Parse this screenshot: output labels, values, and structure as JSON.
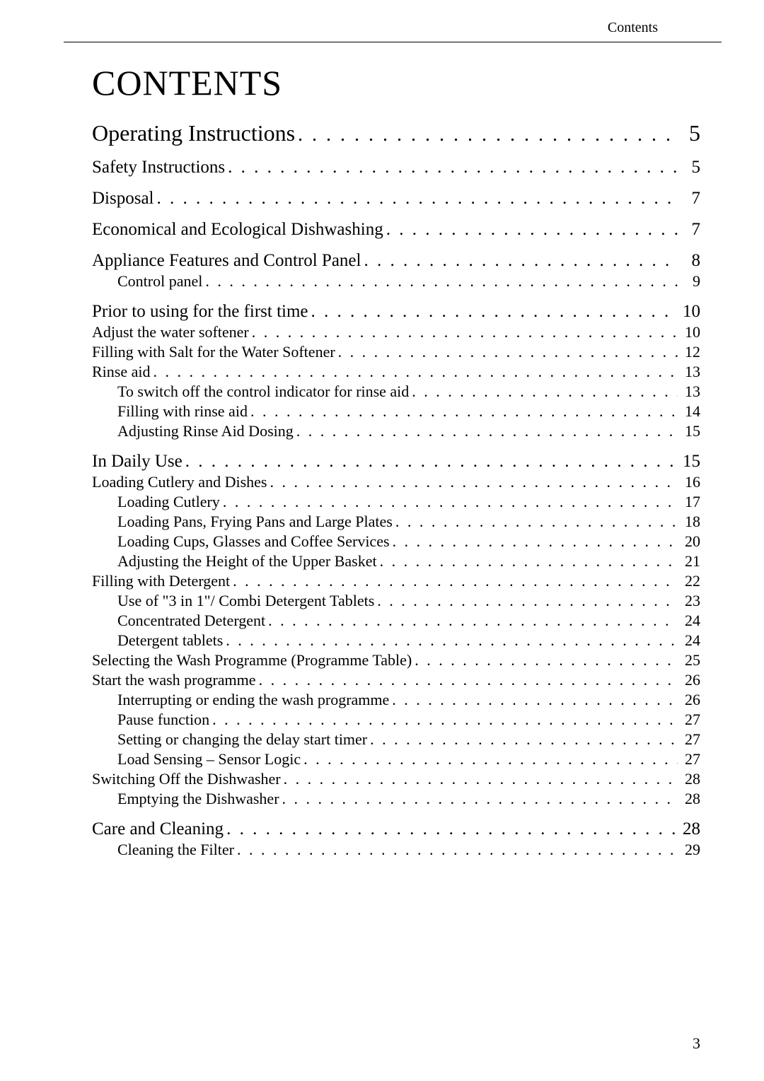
{
  "header_label": "Contents",
  "main_title": "CONTENTS",
  "page_number": "3",
  "toc": [
    {
      "level": 0,
      "text": "Operating Instructions",
      "page": "5"
    },
    {
      "level": 1,
      "text": "Safety Instructions",
      "page": "5"
    },
    {
      "level": 1,
      "text": "Disposal",
      "page": "7"
    },
    {
      "level": 1,
      "text": "Economical and Ecological Dishwashing",
      "page": "7"
    },
    {
      "level": 1,
      "text": "Appliance Features and Control Panel",
      "page": "8"
    },
    {
      "level": 3,
      "text": "Control panel",
      "page": "9"
    },
    {
      "level": 1,
      "text": "Prior to using for the first time",
      "page": "10"
    },
    {
      "level": 2,
      "text": "Adjust the water softener",
      "page": "10"
    },
    {
      "level": 2,
      "text": "Filling with Salt for the Water Softener",
      "page": "12"
    },
    {
      "level": 2,
      "text": "Rinse aid",
      "page": "13"
    },
    {
      "level": 3,
      "text": "To switch off the control indicator for rinse aid",
      "page": "13"
    },
    {
      "level": 3,
      "text": "Filling with rinse aid",
      "page": "14"
    },
    {
      "level": 3,
      "text": "Adjusting Rinse Aid Dosing",
      "page": "15"
    },
    {
      "level": 1,
      "text": "In Daily Use",
      "page": "15"
    },
    {
      "level": 2,
      "text": "Loading Cutlery and Dishes",
      "page": "16"
    },
    {
      "level": 3,
      "text": "Loading Cutlery",
      "page": "17"
    },
    {
      "level": 3,
      "text": "Loading Pans, Frying Pans and Large Plates",
      "page": "18"
    },
    {
      "level": 3,
      "text": "Loading Cups, Glasses and Coffee Services",
      "page": "20"
    },
    {
      "level": 3,
      "text": "Adjusting the Height of the Upper Basket",
      "page": "21"
    },
    {
      "level": 2,
      "text": "Filling with Detergent",
      "page": "22"
    },
    {
      "level": 3,
      "text": "Use of \"3 in 1\"/ Combi Detergent Tablets",
      "page": "23"
    },
    {
      "level": 3,
      "text": "Concentrated Detergent",
      "page": "24"
    },
    {
      "level": 3,
      "text": "Detergent tablets",
      "page": "24"
    },
    {
      "level": 2,
      "text": "Selecting the Wash Programme (Programme Table)",
      "page": "25"
    },
    {
      "level": 2,
      "text": "Start the wash programme",
      "page": "26"
    },
    {
      "level": 3,
      "text": "Interrupting or ending the wash programme",
      "page": "26"
    },
    {
      "level": 3,
      "text": "Pause function",
      "page": "27"
    },
    {
      "level": 3,
      "text": "Setting or changing the delay start timer",
      "page": "27"
    },
    {
      "level": 3,
      "text": "Load Sensing – Sensor Logic",
      "page": "27"
    },
    {
      "level": 2,
      "text": "Switching Off the Dishwasher",
      "page": "28"
    },
    {
      "level": 3,
      "text": "Emptying the Dishwasher",
      "page": "28"
    },
    {
      "level": 1,
      "text": "Care and Cleaning",
      "page": "28"
    },
    {
      "level": 3,
      "text": "Cleaning the Filter",
      "page": "29"
    }
  ]
}
